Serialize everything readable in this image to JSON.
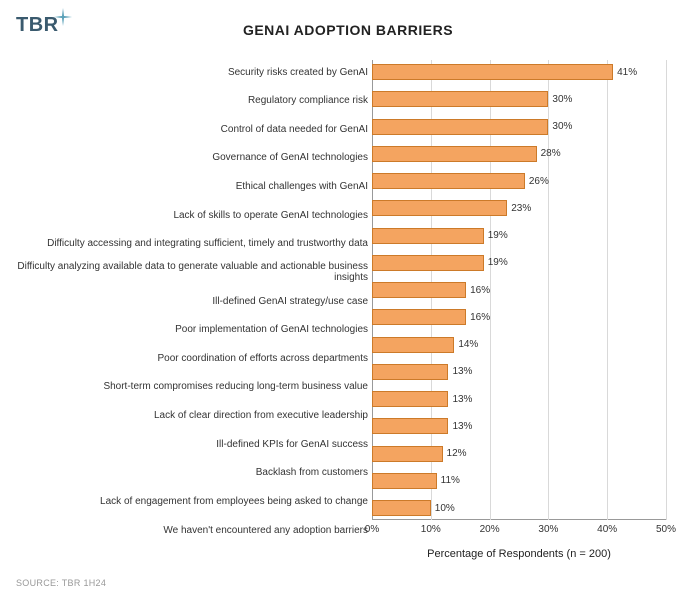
{
  "logo_text": "TBR",
  "title": "GENAI ADOPTION BARRIERS",
  "x_axis_label": "Percentage of Respondents (n = 200)",
  "source": "SOURCE: TBR 1H24",
  "chart": {
    "type": "bar",
    "orientation": "horizontal",
    "bar_color": "#f4a460",
    "bar_border_color": "#cc7a29",
    "grid_color": "#d9d9d9",
    "axis_color": "#999999",
    "background_color": "#ffffff",
    "xlim": [
      0,
      50
    ],
    "xtick_step": 10,
    "xticks": [
      "0%",
      "10%",
      "20%",
      "30%",
      "40%",
      "50%"
    ],
    "label_fontsize": 10,
    "value_fontsize": 10,
    "title_fontsize": 14,
    "categories": [
      "Security risks created by GenAI",
      "Regulatory compliance risk",
      "Control of data needed for GenAI",
      "Governance of GenAI technologies",
      "Ethical challenges with GenAI",
      "Lack of skills to operate GenAI technologies",
      "Difficulty accessing and integrating sufficient, timely and trustworthy data",
      "Difficulty analyzing available data to generate valuable and actionable business insights",
      "Ill-defined GenAI strategy/use case",
      "Poor implementation of GenAI technologies",
      "Poor coordination of efforts across departments",
      "Short-term compromises reducing long-term business value",
      "Lack of clear direction from executive leadership",
      "Ill-defined KPIs for GenAI success",
      "Backlash from customers",
      "Lack of engagement from employees being asked to change",
      "We haven't encountered any adoption barriers"
    ],
    "values": [
      41,
      30,
      30,
      28,
      26,
      23,
      19,
      19,
      16,
      16,
      14,
      13,
      13,
      13,
      12,
      11,
      10
    ],
    "value_labels": [
      "41%",
      "30%",
      "30%",
      "28%",
      "26%",
      "23%",
      "19%",
      "19%",
      "16%",
      "16%",
      "14%",
      "13%",
      "13%",
      "13%",
      "12%",
      "11%",
      "10%"
    ]
  }
}
